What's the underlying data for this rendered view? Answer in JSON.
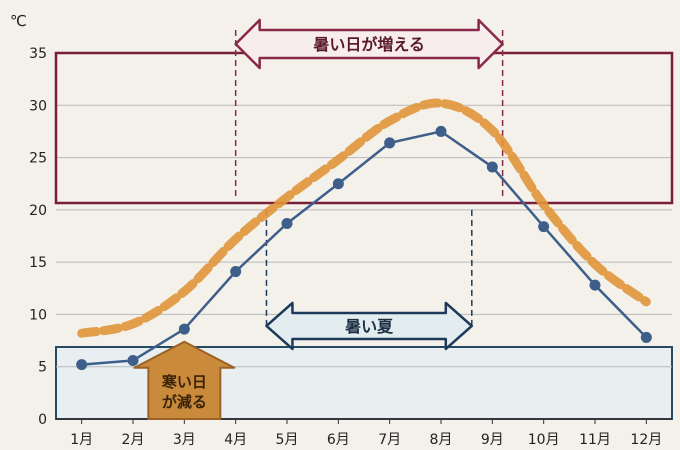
{
  "chart_data": {
    "type": "line",
    "unit_label": "℃",
    "categories": [
      "1月",
      "2月",
      "3月",
      "4月",
      "5月",
      "6月",
      "7月",
      "8月",
      "9月",
      "10月",
      "11月",
      "12月"
    ],
    "ylim": [
      0,
      35
    ],
    "yticks": [
      0,
      5,
      10,
      15,
      20,
      25,
      30,
      35
    ],
    "grid": true,
    "series": [
      {
        "values": [
          5.2,
          5.6,
          8.6,
          14.1,
          18.7,
          22.5,
          26.4,
          27.5,
          24.1,
          18.4,
          12.8,
          7.8
        ],
        "color": "#3e5f8a",
        "style": "solid-markers"
      },
      {
        "values": [
          8.2,
          9.1,
          12.2,
          17.2,
          21.2,
          24.8,
          28.5,
          30.2,
          27.6,
          20.5,
          14.8,
          11.2
        ],
        "color": "#e0953a",
        "style": "thick-dashed"
      }
    ],
    "annotations": {
      "hot_days": {
        "text": "暑い日が増える",
        "band_min": 21,
        "band_max": 35,
        "from_x": 4.0,
        "to_x": 9.2,
        "color": "#8a2a48"
      },
      "hot_summer": {
        "text": "暑い夏",
        "from_x": 4.6,
        "to_x": 8.6,
        "at_y": 11.0,
        "color": "#1d3a5a"
      },
      "cold_days": {
        "text_line1": "寒い日",
        "text_line2": "が減る",
        "band_min": 0,
        "band_max": 7,
        "at_x": 2,
        "color": "#c98a3c"
      }
    }
  }
}
